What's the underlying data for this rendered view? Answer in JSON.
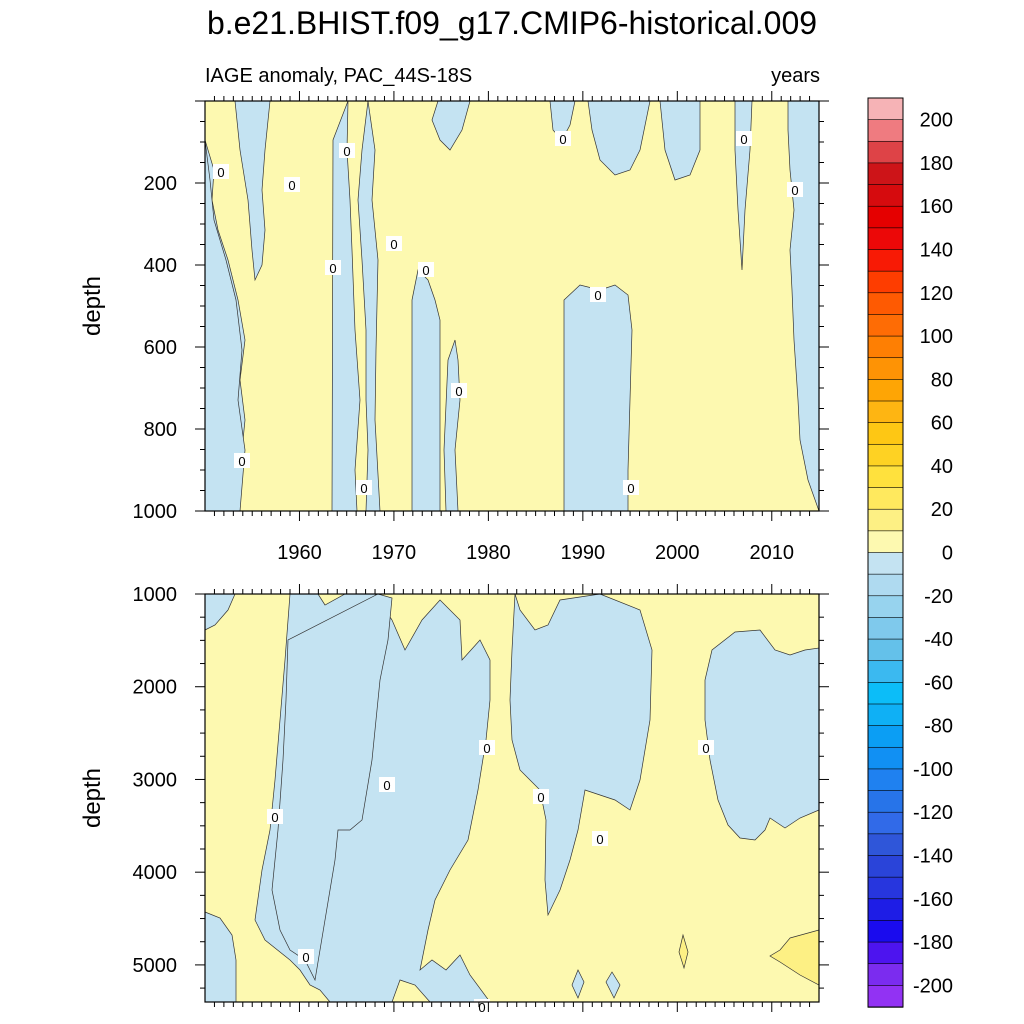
{
  "chart_data": {
    "type": "heatmap",
    "title": "b.e21.BHIST.f09_g17.CMIP6-historical.009",
    "subtitle_left": "IAGE anomaly, PAC_44S-18S",
    "subtitle_right": "years",
    "ylabel": "depth",
    "x_ticks": [
      "1960",
      "1970",
      "1980",
      "1990",
      "2000",
      "2010"
    ],
    "xlim": [
      1950,
      2015
    ],
    "top_panel": {
      "ylim": [
        1000,
        0
      ],
      "y_ticks": [
        "200",
        "400",
        "600",
        "800",
        "1000"
      ],
      "contour_labels": [
        "0",
        "0",
        "0",
        "0",
        "0",
        "0",
        "0",
        "0",
        "0",
        "0",
        "0",
        "0",
        "0",
        "0",
        "0"
      ]
    },
    "bottom_panel": {
      "ylim": [
        5400,
        1000
      ],
      "y_ticks": [
        "1000",
        "2000",
        "3000",
        "4000",
        "5000"
      ],
      "contour_labels": [
        "0",
        "0",
        "0",
        "0",
        "0",
        "0",
        "0",
        "0"
      ]
    },
    "colorbar": {
      "labels": [
        "200",
        "180",
        "160",
        "140",
        "120",
        "100",
        "80",
        "60",
        "40",
        "20",
        "0",
        "-20",
        "-40",
        "-60",
        "-80",
        "-100",
        "-120",
        "-140",
        "-160",
        "-180",
        "-200"
      ],
      "colors": [
        "#f6b3b6",
        "#ef7b80",
        "#de4347",
        "#cd1418",
        "#d60b0e",
        "#e50000",
        "#ec0808",
        "#f81a05",
        "#fe3d00",
        "#fe5a02",
        "#fe6c05",
        "#fe7f03",
        "#fe9305",
        "#fea505",
        "#feb512",
        "#fec714",
        "#fed223",
        "#ffe13d",
        "#ffe95e",
        "#fdf084",
        "#fdf9b0",
        "#c4e3f2",
        "#afdaf0",
        "#97d3ee",
        "#7fc9ec",
        "#64c1ea",
        "#3bb9f0",
        "#0cbdf8",
        "#0fb0f5",
        "#0b9ef4",
        "#1190f3",
        "#1f81f0",
        "#2774e9",
        "#316ae8",
        "#2f56d9",
        "#2a44d9",
        "#2736de",
        "#1e1de6",
        "#1a0bee",
        "#4d14ef",
        "#7b2cef",
        "#9232f3"
      ]
    }
  }
}
